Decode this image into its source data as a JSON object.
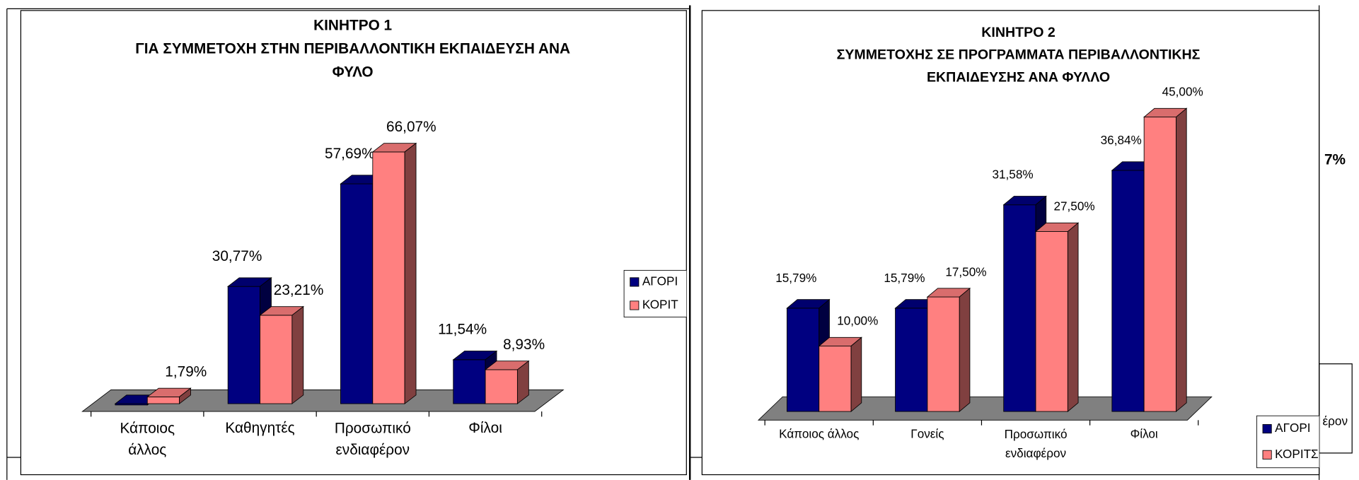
{
  "chart_data": [
    {
      "type": "bar3d",
      "title": [
        "ΚΙΝΗΤΡΟ 1",
        "ΓΙΑ ΣΥΜΜΕΤΟΧΗ ΣΤΗΝ ΠΕΡΙΒΑΛΛΟΝΤΙΚΗ ΕΚΠΑΙΔΕΥΣΗ ΑΝΑ",
        "ΦΥΛΟ"
      ],
      "categories": [
        "Κάποιος άλλος",
        "Καθηγητές",
        "Προσωπικό ενδιαφέρον",
        "Φίλοι"
      ],
      "series": [
        {
          "name": "ΑΓΟΡΙ",
          "color": "#000080",
          "values": [
            0,
            30.77,
            57.69,
            11.54
          ],
          "value_labels": [
            null,
            "30,77%",
            "57,69%",
            "11,54%"
          ]
        },
        {
          "name": "ΚΟΡΙΤ",
          "color": "#ff8080",
          "values": [
            1.79,
            23.21,
            66.07,
            8.93
          ],
          "value_labels": [
            "1,79%",
            "23,21%",
            "66,07%",
            "8,93%"
          ]
        }
      ],
      "ylim": [
        0,
        70
      ],
      "legend": "right"
    },
    {
      "type": "bar3d",
      "title": [
        "ΚΙΝΗΤΡΟ 2",
        "ΣΥΜΜΕΤΟΧΗΣ ΣΕ ΠΡΟΓΡΑΜΜΑΤΑ ΠΕΡΙΒΑΛΛΟΝΤΙΚΗΣ",
        "ΕΚΠΑΙΔΕΥΣΗΣ ΑΝΑ ΦΥΛΛΟ"
      ],
      "categories": [
        "Κάποιος άλλος",
        "Γονείς",
        "Προσωπικό ενδιαφέρον",
        "Φίλοι"
      ],
      "series": [
        {
          "name": "ΑΓΟΡΙ",
          "color": "#000080",
          "values": [
            15.79,
            15.79,
            31.58,
            36.84
          ],
          "value_labels": [
            "15,79%",
            "15,79%",
            "31,58%",
            "36,84%"
          ]
        },
        {
          "name": "ΚΟΡΙΤΣ",
          "color": "#ff8080",
          "values": [
            10.0,
            17.5,
            27.5,
            45.0
          ],
          "value_labels": [
            "10,00%",
            "17,50%",
            "27,50%",
            "45,00%"
          ]
        }
      ],
      "ylim": [
        0,
        45
      ],
      "legend": "bottom-right"
    }
  ],
  "fragment": {
    "label": "7%",
    "category": "έρον"
  }
}
